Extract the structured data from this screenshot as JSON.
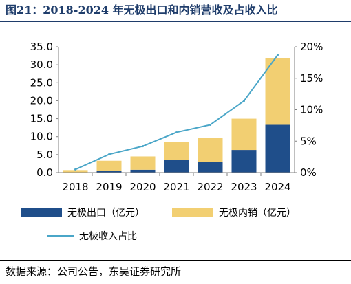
{
  "title": "图21：2018-2024 年无极出口和内销营收及占收入比",
  "source": "数据来源：公司公告，东吴证券研究所",
  "colors": {
    "export": "#1f4e8a",
    "domestic": "#f2cf72",
    "ratio_line": "#4aa6c8",
    "axis": "#7f7f7f"
  },
  "chart_data": {
    "type": "bar",
    "stacked": true,
    "categories": [
      "2018",
      "2019",
      "2020",
      "2021",
      "2022",
      "2023",
      "2024"
    ],
    "series": [
      {
        "name": "无极出口（亿元）",
        "type": "bar",
        "axis": "left",
        "values": [
          0.1,
          0.5,
          0.8,
          3.5,
          3.0,
          6.3,
          13.3
        ]
      },
      {
        "name": "无极内销（亿元）",
        "type": "bar",
        "axis": "left",
        "values": [
          0.6,
          2.8,
          3.7,
          5.0,
          6.6,
          8.7,
          18.5
        ]
      },
      {
        "name": "无极收入占比",
        "type": "line",
        "axis": "right",
        "values": [
          0.5,
          2.9,
          4.2,
          6.4,
          7.6,
          11.4,
          18.7
        ]
      }
    ],
    "y_left": {
      "min": 0,
      "max": 35,
      "ticks": [
        "0.0",
        "5.0",
        "10.0",
        "15.0",
        "20.0",
        "25.0",
        "30.0",
        "35.0"
      ]
    },
    "y_right": {
      "min": 0,
      "max": 20,
      "ticks": [
        "0%",
        "5%",
        "10%",
        "15%",
        "20%"
      ]
    },
    "grid": false,
    "legend_position": "bottom"
  }
}
